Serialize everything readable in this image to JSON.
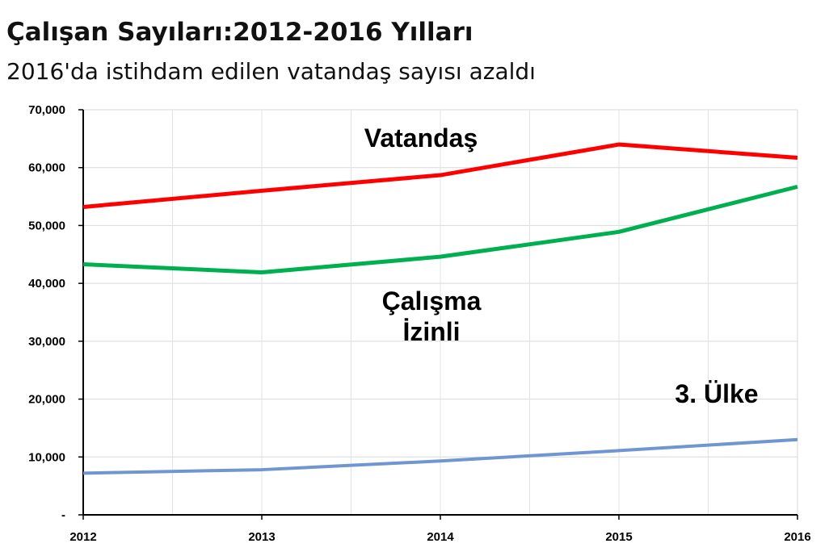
{
  "header": {
    "title": "Çalışan Sayıları:2012-2016 Yılları",
    "subtitle": "2016'da istihdam edilen vatandaş sayısı azaldı"
  },
  "chart_data": {
    "type": "line",
    "title": "Çalışan Sayıları:2012-2016 Yılları",
    "subtitle": "2016'da istihdam edilen vatandaş sayısı azaldı",
    "xlabel": "",
    "ylabel": "",
    "x": [
      "2012",
      "2013",
      "2014",
      "2015",
      "2016"
    ],
    "ylim": [
      0,
      70000
    ],
    "y_ticks": [
      0,
      10000,
      20000,
      30000,
      40000,
      50000,
      60000,
      70000
    ],
    "y_tick_labels": [
      "-",
      "10,000",
      "20,000",
      "30,000",
      "40,000",
      "50,000",
      "60,000",
      "70,000"
    ],
    "grid": true,
    "series": [
      {
        "name": "Vatandaş",
        "color": "#ff0000",
        "values": [
          53200,
          56000,
          58700,
          64000,
          61700
        ]
      },
      {
        "name": "Çalışma İzinli",
        "label_lines": [
          "Çalışma",
          "İzinli"
        ],
        "color": "#00b050",
        "values": [
          43300,
          41900,
          44600,
          48900,
          56700
        ]
      },
      {
        "name": "3. Ülke",
        "color": "#6f96d1",
        "values": [
          7200,
          7800,
          9300,
          11100,
          13000
        ]
      }
    ]
  }
}
